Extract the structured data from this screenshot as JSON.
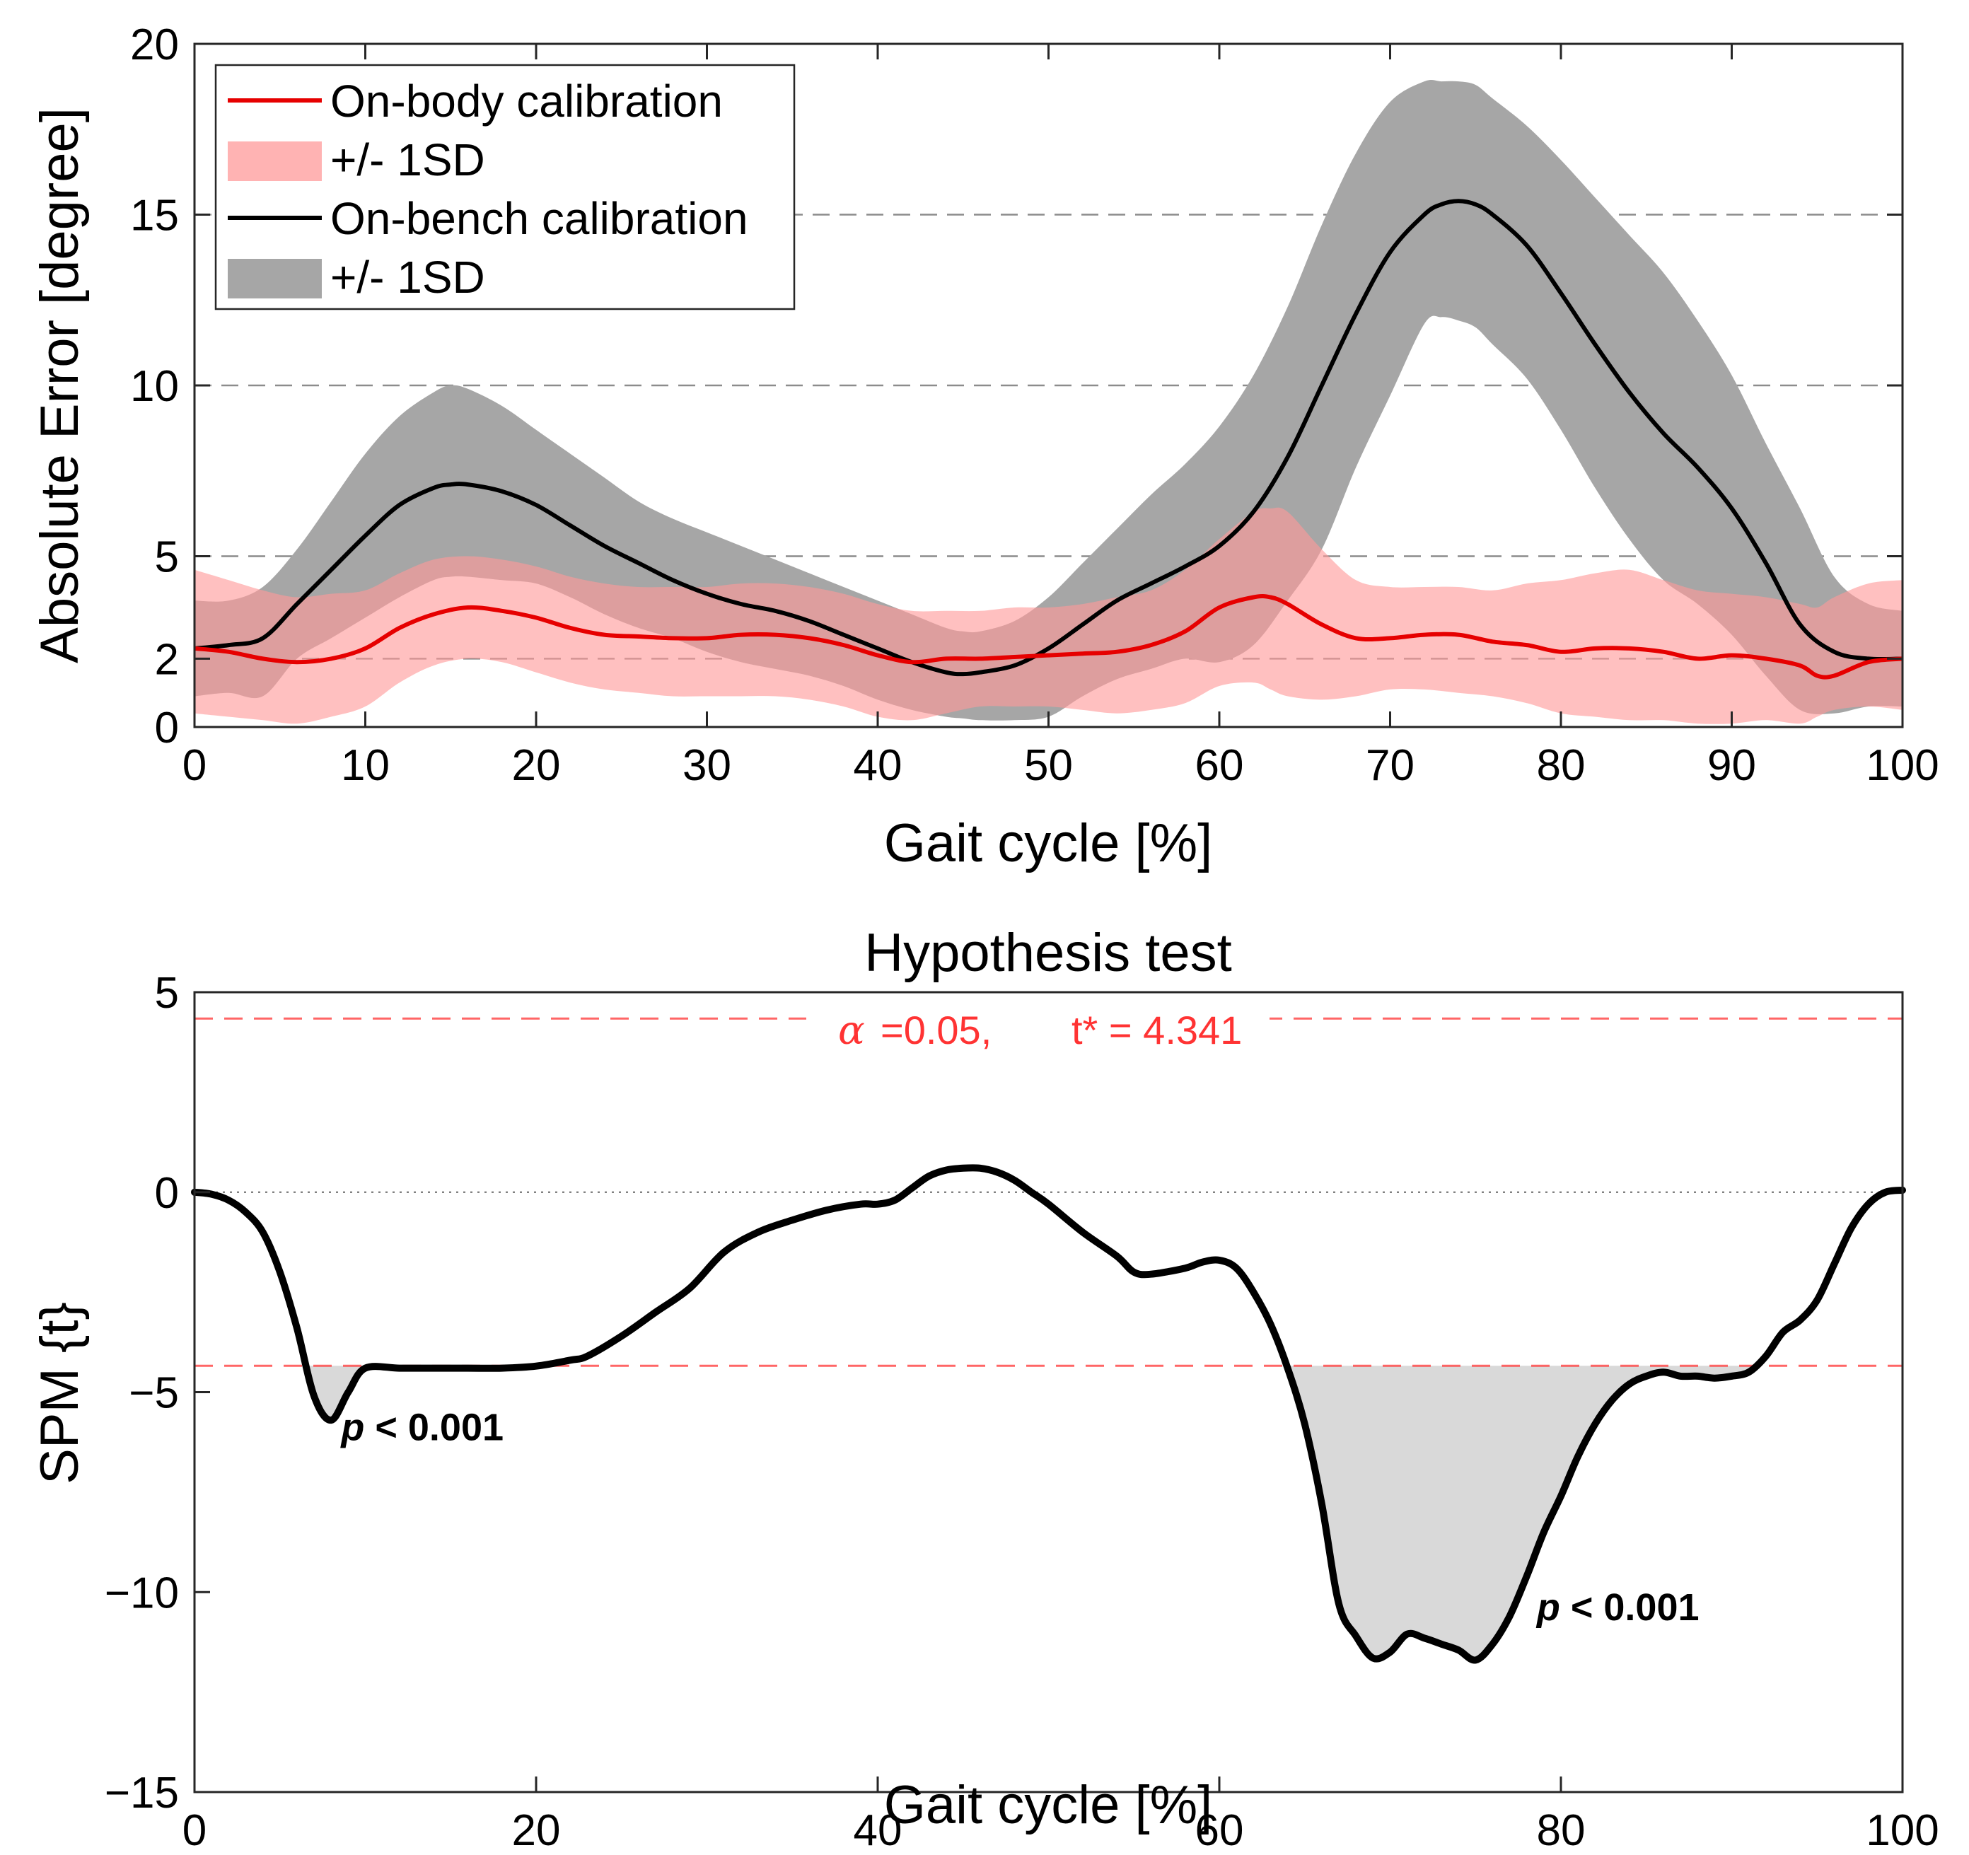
{
  "chart_data": [
    {
      "type": "line",
      "title": "",
      "xlabel": "Gait cycle [%]",
      "ylabel": "Absolute Error [degree]",
      "xlim": [
        0,
        100
      ],
      "ylim": [
        0,
        20
      ],
      "xticks": [
        0,
        10,
        20,
        30,
        40,
        50,
        60,
        70,
        80,
        90,
        100
      ],
      "xtick_labels": [
        "0",
        "10",
        "20",
        "30",
        "40",
        "50",
        "60",
        "70",
        "80",
        "90",
        "100"
      ],
      "yticks": [
        0,
        2,
        5,
        10,
        15,
        20
      ],
      "ytick_labels": [
        "0",
        "2",
        "5",
        "10",
        "15",
        "20"
      ],
      "grid_y": [
        2,
        5,
        10,
        15
      ],
      "legend_position": "top-left",
      "legend": [
        {
          "label": "On-body calibration",
          "kind": "line",
          "color": "#e60000"
        },
        {
          "label": "+/- 1SD",
          "kind": "band",
          "color": "#ffb3b3"
        },
        {
          "label": "On-bench calibration",
          "kind": "line",
          "color": "#000000"
        },
        {
          "label": "+/- 1SD",
          "kind": "band",
          "color": "#a6a6a6"
        }
      ],
      "series": [
        {
          "name": "On-bench calibration",
          "color": "#000000",
          "x": [
            0,
            2,
            4,
            6,
            8,
            10,
            12,
            14,
            15,
            16,
            18,
            20,
            22,
            24,
            26,
            28,
            30,
            32,
            34,
            36,
            38,
            40,
            42,
            44,
            45,
            46,
            48,
            50,
            52,
            54,
            56,
            58,
            60,
            62,
            64,
            66,
            68,
            70,
            72,
            73,
            74,
            75,
            76,
            78,
            80,
            82,
            84,
            86,
            88,
            90,
            92,
            94,
            96,
            98,
            100
          ],
          "y": [
            2.3,
            2.4,
            2.6,
            3.6,
            4.6,
            5.6,
            6.5,
            7.0,
            7.1,
            7.1,
            6.9,
            6.5,
            5.9,
            5.3,
            4.8,
            4.3,
            3.9,
            3.6,
            3.4,
            3.1,
            2.7,
            2.3,
            1.9,
            1.6,
            1.55,
            1.6,
            1.8,
            2.3,
            3.0,
            3.7,
            4.2,
            4.7,
            5.3,
            6.3,
            7.9,
            10.0,
            12.1,
            13.9,
            15.0,
            15.3,
            15.4,
            15.3,
            15.0,
            14.1,
            12.7,
            11.2,
            9.8,
            8.6,
            7.6,
            6.4,
            4.8,
            3.0,
            2.2,
            2.0,
            2.0
          ],
          "sd_upper": [
            3.7,
            3.7,
            4.1,
            5.2,
            6.6,
            8.0,
            9.1,
            9.8,
            10.0,
            9.9,
            9.4,
            8.7,
            8.0,
            7.3,
            6.6,
            6.1,
            5.7,
            5.3,
            4.9,
            4.5,
            4.1,
            3.7,
            3.3,
            2.9,
            2.8,
            2.8,
            3.1,
            3.8,
            4.8,
            5.8,
            6.8,
            7.7,
            8.8,
            10.3,
            12.3,
            14.7,
            16.8,
            18.3,
            18.9,
            18.9,
            18.9,
            18.8,
            18.4,
            17.6,
            16.6,
            15.5,
            14.4,
            13.3,
            11.9,
            10.3,
            8.3,
            6.4,
            4.4,
            3.6,
            3.4
          ],
          "sd_lower": [
            0.9,
            1.0,
            0.9,
            2.0,
            2.6,
            3.2,
            3.8,
            4.3,
            4.4,
            4.4,
            4.3,
            4.2,
            3.8,
            3.3,
            2.9,
            2.6,
            2.2,
            1.9,
            1.7,
            1.5,
            1.2,
            0.8,
            0.5,
            0.3,
            0.25,
            0.2,
            0.2,
            0.3,
            0.9,
            1.4,
            1.7,
            2.0,
            1.9,
            2.4,
            3.7,
            5.2,
            7.6,
            9.7,
            11.8,
            12.0,
            11.9,
            11.7,
            11.2,
            10.2,
            8.7,
            7.0,
            5.5,
            4.3,
            3.6,
            2.7,
            1.5,
            0.5,
            0.4,
            0.6,
            0.6
          ]
        },
        {
          "name": "On-body calibration",
          "color": "#e60000",
          "x": [
            0,
            2,
            4,
            6,
            8,
            10,
            12,
            14,
            16,
            18,
            20,
            22,
            24,
            26,
            28,
            30,
            32,
            34,
            36,
            38,
            40,
            42,
            44,
            46,
            48,
            50,
            52,
            54,
            56,
            58,
            60,
            62,
            63,
            64,
            66,
            68,
            70,
            72,
            74,
            76,
            78,
            80,
            82,
            84,
            86,
            88,
            90,
            92,
            94,
            95,
            96,
            98,
            100
          ],
          "y": [
            2.3,
            2.2,
            2.0,
            1.9,
            2.0,
            2.3,
            2.9,
            3.3,
            3.5,
            3.4,
            3.2,
            2.9,
            2.7,
            2.65,
            2.6,
            2.6,
            2.7,
            2.7,
            2.6,
            2.4,
            2.1,
            1.9,
            2.0,
            2.0,
            2.05,
            2.1,
            2.15,
            2.2,
            2.4,
            2.8,
            3.5,
            3.8,
            3.8,
            3.6,
            3.0,
            2.6,
            2.6,
            2.7,
            2.7,
            2.5,
            2.4,
            2.2,
            2.3,
            2.3,
            2.2,
            2.0,
            2.1,
            2.0,
            1.8,
            1.5,
            1.5,
            1.9,
            2.0
          ],
          "sd_upper": [
            4.6,
            4.3,
            4.0,
            3.8,
            3.9,
            4.0,
            4.5,
            4.9,
            5.0,
            4.9,
            4.7,
            4.4,
            4.2,
            4.1,
            4.1,
            4.1,
            4.2,
            4.2,
            4.1,
            3.9,
            3.6,
            3.4,
            3.4,
            3.4,
            3.5,
            3.5,
            3.6,
            3.8,
            4.0,
            4.6,
            5.5,
            6.3,
            6.4,
            6.3,
            5.2,
            4.3,
            4.1,
            4.1,
            4.1,
            4.0,
            4.2,
            4.3,
            4.5,
            4.6,
            4.3,
            4.0,
            3.9,
            3.8,
            3.6,
            3.5,
            3.8,
            4.2,
            4.3
          ],
          "sd_lower": [
            0.4,
            0.3,
            0.2,
            0.1,
            0.3,
            0.6,
            1.3,
            1.8,
            2.0,
            1.9,
            1.6,
            1.3,
            1.1,
            1.0,
            0.9,
            0.9,
            0.9,
            0.9,
            0.8,
            0.6,
            0.3,
            0.2,
            0.4,
            0.6,
            0.6,
            0.6,
            0.5,
            0.4,
            0.5,
            0.7,
            1.2,
            1.3,
            1.1,
            0.9,
            0.8,
            0.9,
            1.1,
            1.1,
            1.0,
            0.9,
            0.7,
            0.4,
            0.3,
            0.2,
            0.2,
            0.1,
            0.1,
            0.2,
            0.1,
            0.3,
            0.5,
            0.6,
            0.5
          ]
        }
      ]
    },
    {
      "type": "line",
      "title": "Hypothesis test",
      "xlabel": "Gait cycle [%]",
      "ylabel": "SPM {t}",
      "xlim": [
        0,
        100
      ],
      "ylim": [
        -15,
        5
      ],
      "xticks": [
        0,
        20,
        40,
        60,
        80,
        100
      ],
      "xtick_labels": [
        "0",
        "20",
        "40",
        "60",
        "80",
        "100"
      ],
      "yticks": [
        -15,
        -10,
        -5,
        0,
        5
      ],
      "ytick_labels": [
        "−15",
        "−10",
        "−5",
        "0",
        "5"
      ],
      "threshold": {
        "value": 4.341,
        "color": "#ff3333",
        "alpha_symbol": "α",
        "alpha_text": "=0.05,",
        "tstar_text": "t* = 4.341"
      },
      "zero_line": true,
      "annotations": [
        {
          "text": "p < 0.001",
          "x": 9,
          "y": -6.2
        },
        {
          "text": "p < 0.001",
          "x": 79,
          "y": -10.7
        }
      ],
      "series": [
        {
          "name": "SPM {t}",
          "color": "#000000",
          "x": [
            0,
            1,
            2,
            3,
            4,
            5,
            6,
            7,
            8,
            9,
            10,
            12,
            14,
            16,
            18,
            20,
            22,
            23,
            25,
            27,
            29,
            31,
            33,
            35,
            37,
            39,
            40,
            41,
            42,
            43,
            44,
            45,
            46,
            47,
            48,
            49,
            50,
            52,
            54,
            55,
            56,
            58,
            59,
            60,
            61,
            62,
            63,
            64,
            65,
            66,
            67,
            68,
            69,
            70,
            71,
            72,
            73,
            74,
            75,
            76,
            77,
            78,
            79,
            80,
            81,
            82,
            83,
            84,
            85,
            86,
            87,
            88,
            89,
            90,
            91,
            92,
            93,
            94,
            95,
            96,
            97,
            98,
            99,
            100
          ],
          "y": [
            0.0,
            -0.05,
            -0.2,
            -0.5,
            -1.0,
            -2.0,
            -3.4,
            -5.1,
            -5.7,
            -5.0,
            -4.4,
            -4.4,
            -4.4,
            -4.4,
            -4.4,
            -4.35,
            -4.2,
            -4.1,
            -3.6,
            -3.0,
            -2.4,
            -1.5,
            -1.0,
            -0.7,
            -0.45,
            -0.3,
            -0.3,
            -0.2,
            0.1,
            0.4,
            0.55,
            0.6,
            0.6,
            0.5,
            0.3,
            0.0,
            -0.3,
            -1.0,
            -1.6,
            -2.0,
            -2.05,
            -1.9,
            -1.75,
            -1.7,
            -1.9,
            -2.5,
            -3.3,
            -4.4,
            -5.8,
            -7.8,
            -10.3,
            -11.1,
            -11.65,
            -11.5,
            -11.05,
            -11.15,
            -11.3,
            -11.45,
            -11.7,
            -11.3,
            -10.6,
            -9.6,
            -8.5,
            -7.6,
            -6.6,
            -5.8,
            -5.2,
            -4.8,
            -4.6,
            -4.5,
            -4.6,
            -4.6,
            -4.65,
            -4.6,
            -4.5,
            -4.1,
            -3.5,
            -3.2,
            -2.7,
            -1.8,
            -0.9,
            -0.3,
            0.0,
            0.05
          ]
        }
      ]
    }
  ]
}
